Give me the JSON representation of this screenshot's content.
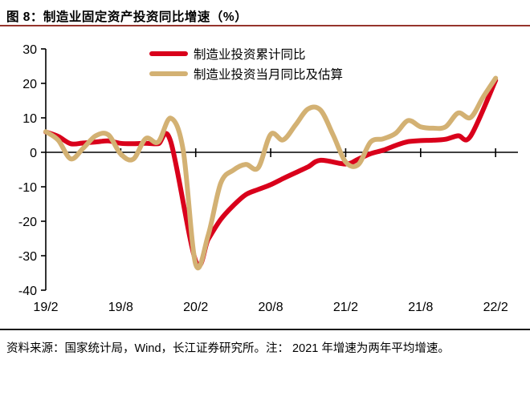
{
  "title": "图  8：制造业固定资产投资同比增速（%）",
  "colors": {
    "title_rule": "#96342c",
    "red_series": "#d9001b",
    "tan_series": "#d3b173",
    "axis": "#000000"
  },
  "footer": {
    "source_note": "资料来源：国家统计局，Wind，长江证券研究所。注： 2021 年增速为两年平均增速。"
  },
  "chart_data": {
    "type": "line",
    "title": "制造业固定资产投资同比增速（%）",
    "ylabel": "",
    "xlabel": "",
    "ylim": [
      -40,
      30
    ],
    "y_ticks": [
      30,
      20,
      10,
      0,
      -10,
      -20,
      -30,
      -40
    ],
    "x_tick_labels": [
      "19/2",
      "19/8",
      "20/2",
      "20/8",
      "21/2",
      "21/8",
      "22/2"
    ],
    "x_tick_month_index": [
      0,
      6,
      12,
      18,
      24,
      30,
      36
    ],
    "grid": "zero-axis-only",
    "legend_position": "top-center",
    "note": "x values are months indexed from 19/2=0 to 22/2=36; Jan points absent for cumulative series",
    "series": [
      {
        "name": "制造业投资累计同比",
        "color": "#d9001b",
        "points": [
          [
            0,
            5.9
          ],
          [
            1,
            4.6
          ],
          [
            2,
            2.5
          ],
          [
            3,
            2.7
          ],
          [
            4,
            3.0
          ],
          [
            5,
            3.3
          ],
          [
            6,
            2.6
          ],
          [
            7,
            2.5
          ],
          [
            8,
            2.6
          ],
          [
            9,
            2.5
          ],
          [
            10,
            3.1
          ],
          [
            12,
            -31.5
          ],
          [
            13,
            -25.2
          ],
          [
            14,
            -19.5
          ],
          [
            15,
            -15.5
          ],
          [
            16,
            -12.3
          ],
          [
            17,
            -10.8
          ],
          [
            18,
            -9.4
          ],
          [
            19,
            -7.6
          ],
          [
            20,
            -5.9
          ],
          [
            21,
            -4.2
          ],
          [
            22,
            -2.3
          ],
          [
            24,
            -3.4
          ],
          [
            25,
            -2.0
          ],
          [
            26,
            -0.4
          ],
          [
            27,
            0.6
          ],
          [
            28,
            2.0
          ],
          [
            29,
            3.1
          ],
          [
            30,
            3.4
          ],
          [
            31,
            3.5
          ],
          [
            32,
            3.8
          ],
          [
            33,
            4.8
          ],
          [
            34,
            4.7
          ],
          [
            36,
            20.9
          ]
        ]
      },
      {
        "name": "制造业投资当月同比及估算",
        "color": "#d3b173",
        "points": [
          [
            0,
            6.0
          ],
          [
            1,
            3.5
          ],
          [
            2,
            -1.9
          ],
          [
            3,
            1.2
          ],
          [
            4,
            4.8
          ],
          [
            5,
            5.1
          ],
          [
            6,
            -0.5
          ],
          [
            7,
            -2.0
          ],
          [
            8,
            4.0
          ],
          [
            9,
            3.0
          ],
          [
            10,
            9.9
          ],
          [
            11,
            0.5
          ],
          [
            12,
            -32.5
          ],
          [
            13,
            -24.0
          ],
          [
            14,
            -9.0
          ],
          [
            15,
            -5.2
          ],
          [
            16,
            -3.5
          ],
          [
            17,
            -4.5
          ],
          [
            18,
            5.2
          ],
          [
            19,
            3.6
          ],
          [
            20,
            8.0
          ],
          [
            21,
            12.6
          ],
          [
            22,
            12.2
          ],
          [
            23,
            5.0
          ],
          [
            24,
            -2.8
          ],
          [
            25,
            -3.6
          ],
          [
            26,
            3.0
          ],
          [
            27,
            3.9
          ],
          [
            28,
            5.5
          ],
          [
            29,
            9.2
          ],
          [
            30,
            7.4
          ],
          [
            31,
            7.0
          ],
          [
            32,
            7.4
          ],
          [
            33,
            11.4
          ],
          [
            34,
            10.1
          ],
          [
            35,
            16.0
          ],
          [
            36,
            21.5
          ]
        ]
      }
    ]
  }
}
